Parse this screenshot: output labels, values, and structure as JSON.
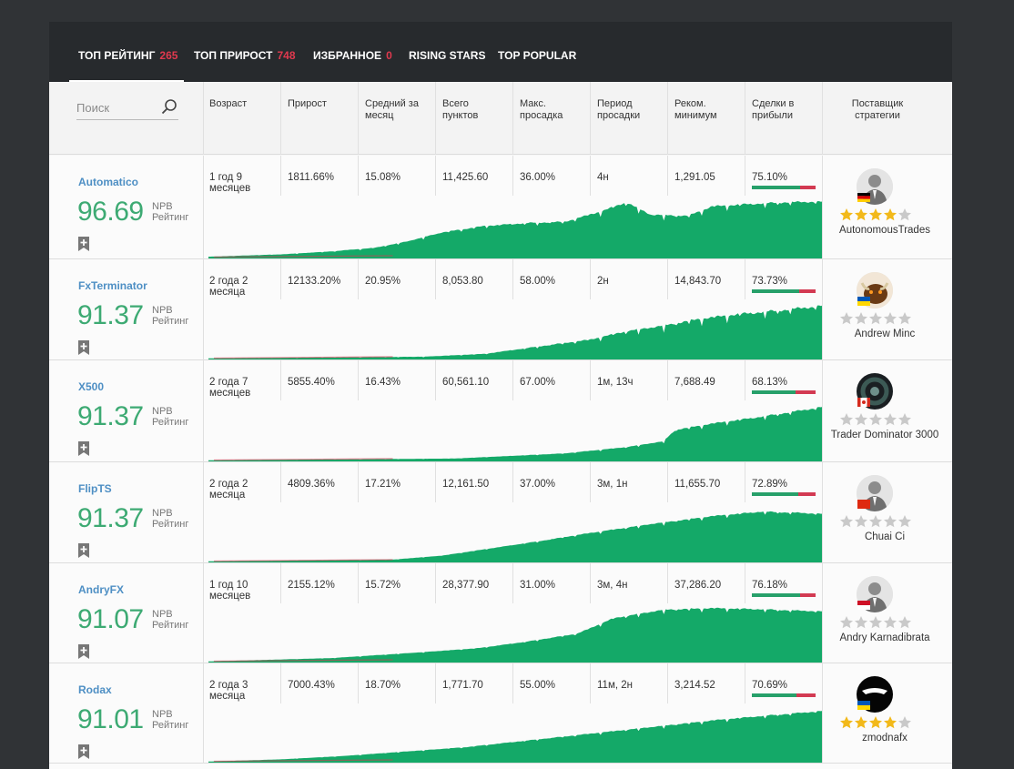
{
  "tabs": [
    {
      "label": "ТОП РЕЙТИНГ",
      "count": "265"
    },
    {
      "label": "ТОП ПРИРОСТ",
      "count": "748"
    },
    {
      "label": "ИЗБРАННОЕ",
      "count": "0"
    },
    {
      "label": "RISING STARS",
      "count": ""
    },
    {
      "label": "TOP POPULAR",
      "count": ""
    }
  ],
  "search": {
    "placeholder": "Поиск",
    "value": ""
  },
  "columns": [
    "Возраст",
    "Прирост",
    "Средний за месяц",
    "Всего пунктов",
    "Макс. просадка",
    "Период просадки",
    "Реком. минимум",
    "Сделки в прибыли",
    "Поставщик стратегии"
  ],
  "rating_unit_line1": "NPB",
  "rating_unit_line2": "Рейтинг",
  "colors": {
    "accent_green": "#3daa73",
    "link_blue": "#4e8fc4",
    "tab_count_red": "#e0394e",
    "chart_fill": "#14a968",
    "loss_red": "#d33a52"
  },
  "rows": [
    {
      "name": "Automatico",
      "score": "96.69",
      "age": "1 год 9 месяцев",
      "growth": "1811.66%",
      "monthly": "15.08%",
      "pips": "11,425.60",
      "drawdown": "36.00%",
      "dd_period": "4н",
      "rec_min": "1,291.05",
      "profit_trades": "75.10%",
      "profit_fraction": 0.751,
      "provider": "AutonomousTrades",
      "stars": 4,
      "flag": "de",
      "avatar": "suit-silhouette"
    },
    {
      "name": "FxTerminator",
      "score": "91.37",
      "age": "2 года 2 месяца",
      "growth": "12133.20%",
      "monthly": "20.95%",
      "pips": "8,053.80",
      "drawdown": "58.00%",
      "dd_period": "2н",
      "rec_min": "14,843.70",
      "profit_trades": "73.73%",
      "profit_fraction": 0.7373,
      "provider": "Andrew Minc",
      "stars": 0,
      "flag": "ua",
      "avatar": "bull"
    },
    {
      "name": "X500",
      "score": "91.37",
      "age": "2 года 7 месяцев",
      "growth": "5855.40%",
      "monthly": "16.43%",
      "pips": "60,561.10",
      "drawdown": "67.00%",
      "dd_period": "1м, 13ч",
      "rec_min": "7,688.49",
      "profit_trades": "68.13%",
      "profit_fraction": 0.6813,
      "provider": "Trader Dominator 3000",
      "stars": 0,
      "flag": "ca",
      "avatar": "dark-logo"
    },
    {
      "name": "FlipTS",
      "score": "91.37",
      "age": "2 года 2 месяца",
      "growth": "4809.36%",
      "monthly": "17.21%",
      "pips": "12,161.50",
      "drawdown": "37.00%",
      "dd_period": "3м, 1н",
      "rec_min": "11,655.70",
      "profit_trades": "72.89%",
      "profit_fraction": 0.7289,
      "provider": "Chuai Ci",
      "stars": 0,
      "flag": "cn",
      "avatar": "suit-silhouette"
    },
    {
      "name": "AndryFX",
      "score": "91.07",
      "age": "1 год 10 месяцев",
      "growth": "2155.12%",
      "monthly": "15.72%",
      "pips": "28,377.90",
      "drawdown": "31.00%",
      "dd_period": "3м, 4н",
      "rec_min": "37,286.20",
      "profit_trades": "76.18%",
      "profit_fraction": 0.7618,
      "provider": "Andry Karnadibrata",
      "stars": 0,
      "flag": "id",
      "avatar": "suit-silhouette"
    },
    {
      "name": "Rodax",
      "score": "91.01",
      "age": "2 года 3 месяца",
      "growth": "7000.43%",
      "monthly": "18.70%",
      "pips": "1,771.70",
      "drawdown": "55.00%",
      "dd_period": "11м, 2н",
      "rec_min": "3,214.52",
      "profit_trades": "70.69%",
      "profit_fraction": 0.7069,
      "provider": "zmodnafx",
      "stars": 4,
      "flag": "ua",
      "avatar": "black-logo"
    }
  ]
}
